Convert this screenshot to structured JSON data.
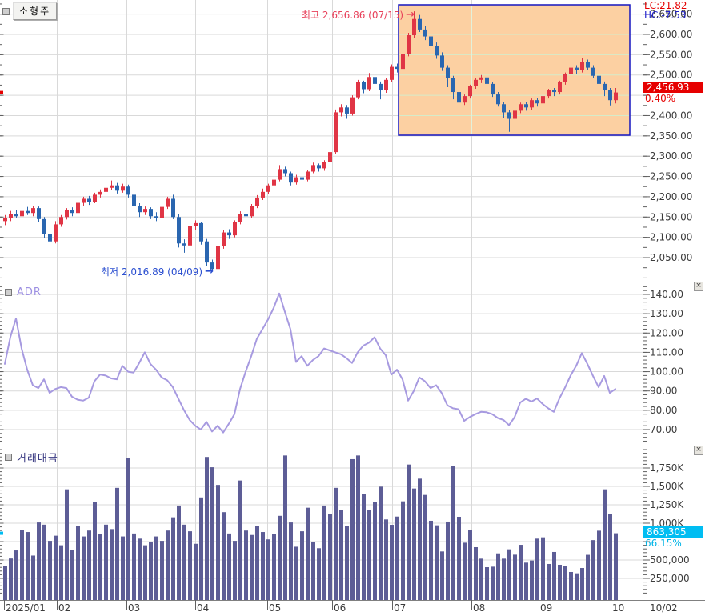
{
  "price_panel": {
    "symbol_label": "소형주",
    "lc_label": "LC:21.82",
    "hc_label": "HC:-7.53",
    "high_annotation": "최고 2,656.86 (07/15)",
    "low_annotation": "최저 2,016.89 (04/09)",
    "arrow": "→",
    "current_price": "2,456.93",
    "change_pct": "0.40%",
    "axis": [
      {
        "v": 2650,
        "label": "2,650.00"
      },
      {
        "v": 2600,
        "label": "2,600.00"
      },
      {
        "v": 2550,
        "label": "2,550.00"
      },
      {
        "v": 2500,
        "label": "2,500.00"
      },
      {
        "v": 2400,
        "label": "2,400.00"
      },
      {
        "v": 2350,
        "label": "2,350.00"
      },
      {
        "v": 2300,
        "label": "2,300.00"
      },
      {
        "v": 2250,
        "label": "2,250.00"
      },
      {
        "v": 2200,
        "label": "2,200.00"
      },
      {
        "v": 2150,
        "label": "2,150.00"
      },
      {
        "v": 2100,
        "label": "2,100.00"
      },
      {
        "v": 2050,
        "label": "2,050.00"
      }
    ]
  },
  "adr_panel": {
    "title": "ADR",
    "close_icon": "×",
    "axis": [
      {
        "v": 140,
        "label": "140.00"
      },
      {
        "v": 130,
        "label": "130.00"
      },
      {
        "v": 120,
        "label": "120.00"
      },
      {
        "v": 110,
        "label": "110.00"
      },
      {
        "v": 100,
        "label": "100.00"
      },
      {
        "v": 90,
        "label": "90.00"
      },
      {
        "v": 80,
        "label": "80.00"
      },
      {
        "v": 70,
        "label": "70.00"
      }
    ]
  },
  "volume_panel": {
    "title": "거래대금",
    "close_icon": "×",
    "current_value": "863,305",
    "current_pct": "66.15%",
    "axis": [
      {
        "v": 1750,
        "label": "1,750K"
      },
      {
        "v": 1500,
        "label": "1,500K"
      },
      {
        "v": 1250,
        "label": "1,250K"
      },
      {
        "v": 1000,
        "label": "1,000K"
      },
      {
        "v": 500,
        "label": "500,000"
      },
      {
        "v": 250,
        "label": "250,000"
      }
    ]
  },
  "x_axis": {
    "labels": [
      "2025/01",
      "02",
      "03",
      "04",
      "05",
      "06",
      "07",
      "08",
      "09",
      "10"
    ],
    "end_label": "10/02"
  },
  "colors": {
    "up": "#e03545",
    "down": "#2a66b0",
    "adr_line": "#a79ae0",
    "volume_bar": "#5d5d96",
    "grid": "#d9d9d9",
    "grid_in_box_h": "#d5ecca",
    "grid_in_box_v": "#e2f1da",
    "highlight_fill": "#fcd0a2",
    "highlight_border": "#1515c0",
    "price_badge_bg": "#e60000",
    "price_pct_color": "#e60000",
    "volume_badge_bg": "#00bdf2",
    "volume_pct_color": "#00b4e6",
    "lc_color": "#e60000",
    "hc_color": "#2222cc",
    "high_text_color": "#e8405a",
    "low_text_color": "#2b4fd0",
    "axis_text": "#3c3c3c",
    "tick_color": "#606060"
  },
  "chart_data": [
    {
      "type": "candlestick",
      "title": "소형주 (small-cap index, daily)",
      "ylim": [
        1990,
        2685
      ],
      "gridline_step": 50,
      "high": {
        "value": 2656.86,
        "date": "07/15"
      },
      "low": {
        "value": 2016.89,
        "date": "04/09"
      },
      "last_close": 2456.93,
      "change_pct": 0.4,
      "lc_pct": 21.82,
      "hc_pct": -7.53,
      "highlight_region": {
        "from_month": "07",
        "to_month": "10",
        "style": "orange box with blue border"
      },
      "candles": [
        [
          2140,
          2155,
          2130,
          2148
        ],
        [
          2148,
          2165,
          2140,
          2158
        ],
        [
          2158,
          2168,
          2148,
          2152
        ],
        [
          2152,
          2170,
          2146,
          2165
        ],
        [
          2165,
          2175,
          2155,
          2160
        ],
        [
          2160,
          2178,
          2152,
          2172
        ],
        [
          2172,
          2176,
          2138,
          2145
        ],
        [
          2145,
          2150,
          2098,
          2108
        ],
        [
          2108,
          2115,
          2082,
          2090
        ],
        [
          2090,
          2140,
          2085,
          2132
        ],
        [
          2132,
          2155,
          2126,
          2150
        ],
        [
          2150,
          2172,
          2144,
          2168
        ],
        [
          2168,
          2174,
          2152,
          2160
        ],
        [
          2160,
          2190,
          2156,
          2185
        ],
        [
          2185,
          2200,
          2178,
          2195
        ],
        [
          2195,
          2202,
          2180,
          2188
        ],
        [
          2188,
          2210,
          2184,
          2205
        ],
        [
          2205,
          2218,
          2198,
          2212
        ],
        [
          2212,
          2228,
          2206,
          2222
        ],
        [
          2222,
          2240,
          2216,
          2228
        ],
        [
          2228,
          2234,
          2208,
          2215
        ],
        [
          2215,
          2232,
          2210,
          2225
        ],
        [
          2225,
          2230,
          2198,
          2205
        ],
        [
          2205,
          2210,
          2170,
          2178
        ],
        [
          2178,
          2184,
          2150,
          2162
        ],
        [
          2162,
          2176,
          2155,
          2170
        ],
        [
          2170,
          2174,
          2145,
          2152
        ],
        [
          2152,
          2162,
          2140,
          2148
        ],
        [
          2148,
          2180,
          2144,
          2175
        ],
        [
          2175,
          2200,
          2170,
          2195
        ],
        [
          2195,
          2205,
          2145,
          2150
        ],
        [
          2150,
          2158,
          2075,
          2085
        ],
        [
          2085,
          2095,
          2062,
          2080
        ],
        [
          2080,
          2132,
          2072,
          2128
        ],
        [
          2128,
          2142,
          2118,
          2135
        ],
        [
          2135,
          2138,
          2082,
          2090
        ],
        [
          2090,
          2096,
          2030,
          2038
        ],
        [
          2038,
          2045,
          2016.89,
          2022
        ],
        [
          2022,
          2082,
          2018,
          2078
        ],
        [
          2078,
          2118,
          2072,
          2112
        ],
        [
          2112,
          2120,
          2096,
          2105
        ],
        [
          2105,
          2142,
          2100,
          2138
        ],
        [
          2138,
          2164,
          2132,
          2158
        ],
        [
          2158,
          2166,
          2144,
          2152
        ],
        [
          2152,
          2182,
          2148,
          2178
        ],
        [
          2178,
          2204,
          2172,
          2198
        ],
        [
          2198,
          2220,
          2192,
          2212
        ],
        [
          2212,
          2232,
          2206,
          2228
        ],
        [
          2228,
          2248,
          2222,
          2242
        ],
        [
          2242,
          2278,
          2238,
          2268
        ],
        [
          2268,
          2274,
          2250,
          2258
        ],
        [
          2258,
          2262,
          2228,
          2235
        ],
        [
          2235,
          2254,
          2230,
          2248
        ],
        [
          2248,
          2252,
          2234,
          2242
        ],
        [
          2242,
          2266,
          2238,
          2262
        ],
        [
          2262,
          2284,
          2258,
          2278
        ],
        [
          2278,
          2282,
          2262,
          2270
        ],
        [
          2270,
          2290,
          2264,
          2285
        ],
        [
          2285,
          2315,
          2280,
          2310
        ],
        [
          2310,
          2415,
          2305,
          2408
        ],
        [
          2408,
          2428,
          2398,
          2420
        ],
        [
          2420,
          2426,
          2392,
          2405
        ],
        [
          2405,
          2450,
          2400,
          2445
        ],
        [
          2445,
          2488,
          2440,
          2482
        ],
        [
          2482,
          2486,
          2455,
          2465
        ],
        [
          2465,
          2505,
          2460,
          2495
        ],
        [
          2495,
          2500,
          2470,
          2478
        ],
        [
          2478,
          2484,
          2440,
          2462
        ],
        [
          2462,
          2492,
          2456,
          2488
        ],
        [
          2488,
          2526,
          2482,
          2520
        ],
        [
          2520,
          2528,
          2506,
          2515
        ],
        [
          2515,
          2558,
          2510,
          2552
        ],
        [
          2552,
          2604,
          2546,
          2598
        ],
        [
          2598,
          2656.86,
          2592,
          2638
        ],
        [
          2638,
          2648,
          2606,
          2612
        ],
        [
          2612,
          2620,
          2586,
          2595
        ],
        [
          2595,
          2602,
          2564,
          2572
        ],
        [
          2572,
          2580,
          2540,
          2548
        ],
        [
          2548,
          2556,
          2510,
          2518
        ],
        [
          2518,
          2524,
          2470,
          2492
        ],
        [
          2492,
          2498,
          2440,
          2458
        ],
        [
          2458,
          2464,
          2418,
          2432
        ],
        [
          2432,
          2452,
          2426,
          2448
        ],
        [
          2448,
          2476,
          2442,
          2472
        ],
        [
          2472,
          2492,
          2466,
          2488
        ],
        [
          2488,
          2500,
          2480,
          2494
        ],
        [
          2494,
          2498,
          2472,
          2478
        ],
        [
          2478,
          2482,
          2446,
          2452
        ],
        [
          2452,
          2458,
          2422,
          2428
        ],
        [
          2428,
          2434,
          2395,
          2408
        ],
        [
          2408,
          2414,
          2360,
          2392
        ],
        [
          2392,
          2416,
          2386,
          2412
        ],
        [
          2412,
          2432,
          2406,
          2428
        ],
        [
          2428,
          2434,
          2412,
          2420
        ],
        [
          2420,
          2442,
          2414,
          2438
        ],
        [
          2438,
          2444,
          2422,
          2430
        ],
        [
          2430,
          2452,
          2424,
          2448
        ],
        [
          2448,
          2466,
          2442,
          2462
        ],
        [
          2462,
          2468,
          2448,
          2458
        ],
        [
          2458,
          2486,
          2452,
          2482
        ],
        [
          2482,
          2506,
          2476,
          2502
        ],
        [
          2502,
          2522,
          2496,
          2518
        ],
        [
          2518,
          2524,
          2502,
          2512
        ],
        [
          2512,
          2542,
          2506,
          2532
        ],
        [
          2532,
          2538,
          2512,
          2518
        ],
        [
          2518,
          2524,
          2492,
          2498
        ],
        [
          2498,
          2504,
          2470,
          2478
        ],
        [
          2478,
          2484,
          2448,
          2462
        ],
        [
          2462,
          2468,
          2425,
          2438
        ],
        [
          2438,
          2468,
          2430,
          2456.93
        ]
      ]
    },
    {
      "type": "line",
      "title": "ADR",
      "ylim": [
        62,
        146
      ],
      "gridline_step": 10,
      "values": [
        104,
        118,
        127.5,
        112,
        101,
        93,
        91.5,
        96,
        89,
        91,
        92,
        91.5,
        87,
        85.5,
        85,
        86.5,
        95,
        98.5,
        98,
        96.5,
        96,
        103,
        100,
        99.5,
        104.5,
        110,
        104,
        101,
        97,
        95.5,
        92,
        86,
        80,
        75,
        72,
        70,
        74,
        69,
        72,
        68.5,
        73,
        78,
        91,
        100,
        108,
        117,
        122,
        127,
        133,
        140.5,
        131,
        122,
        105,
        108,
        103,
        106,
        108,
        112,
        111,
        110,
        109,
        107,
        104.5,
        110,
        113.5,
        115,
        117.8,
        112,
        108.5,
        98.5,
        101,
        96,
        85,
        90,
        97,
        95,
        91.5,
        93,
        88.9,
        82.6,
        81,
        80.5,
        74.5,
        76.5,
        78,
        79.2,
        79,
        78,
        76,
        75,
        72.3,
        76.4,
        84,
        86,
        84.5,
        86.1,
        83.3,
        81,
        79.2,
        86.1,
        91.7,
        98,
        103,
        109.6,
        104,
        97.8,
        92,
        97.8,
        89,
        91
      ]
    },
    {
      "type": "bar",
      "title": "거래대금 (trading value)",
      "unit": "thousands",
      "ylim": [
        0,
        2050
      ],
      "gridline_step": 250,
      "last_value": 863305,
      "last_pct": 66.15,
      "values_k": [
        420,
        520,
        630,
        910,
        880,
        560,
        1010,
        980,
        760,
        830,
        700,
        1460,
        640,
        960,
        820,
        900,
        1290,
        850,
        980,
        920,
        1480,
        820,
        1890,
        860,
        790,
        700,
        740,
        820,
        760,
        900,
        1080,
        1240,
        980,
        890,
        720,
        1350,
        1900,
        1760,
        1520,
        1150,
        860,
        760,
        1580,
        900,
        840,
        960,
        880,
        780,
        850,
        1100,
        1920,
        1010,
        680,
        890,
        1210,
        740,
        660,
        1240,
        1120,
        1480,
        1180,
        960,
        1870,
        1920,
        1399,
        1181,
        1290,
        1496,
        1051,
        978,
        1090,
        1297,
        1797,
        1471,
        1605,
        1384,
        1033,
        971,
        616,
        1022,
        1775,
        1087,
        735,
        906,
        674,
        518,
        402,
        409,
        590,
        518,
        645,
        572,
        706,
        464,
        493,
        790,
        808,
        446,
        609,
        435,
        420,
        337,
        319,
        391,
        570,
        770,
        898,
        1460,
        1130,
        863.305
      ]
    }
  ]
}
